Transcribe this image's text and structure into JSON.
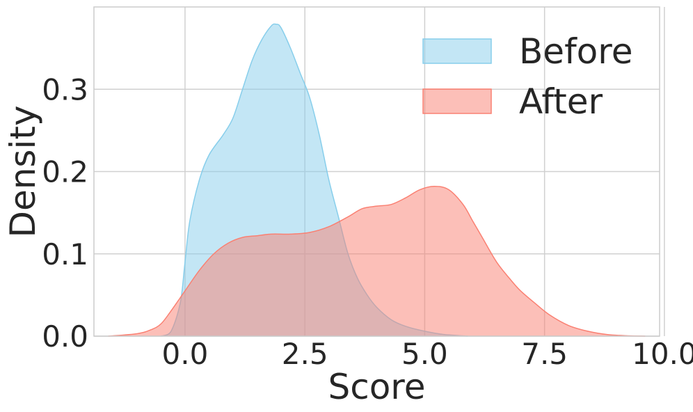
{
  "chart_data": {
    "type": "area",
    "title": "",
    "xlabel": "Score",
    "ylabel": "Density",
    "xlim": [
      -1.9,
      9.9
    ],
    "ylim": [
      0,
      0.4
    ],
    "x_ticks": [
      "0.0",
      "2.5",
      "5.0",
      "7.5",
      "10.0"
    ],
    "x_tick_values": [
      0,
      2.5,
      5,
      7.5,
      10
    ],
    "y_ticks": [
      "0.0",
      "0.1",
      "0.2",
      "0.3"
    ],
    "y_tick_values": [
      0,
      0.1,
      0.2,
      0.3
    ],
    "grid": true,
    "legend_position": "top-right",
    "series": [
      {
        "name": "Before",
        "color": "#87ceeb",
        "x": [
          -0.5,
          -0.3,
          -0.1,
          0.0,
          0.1,
          0.3,
          0.5,
          0.8,
          1.0,
          1.2,
          1.4,
          1.6,
          1.8,
          1.9,
          2.0,
          2.2,
          2.4,
          2.6,
          2.8,
          3.0,
          3.2,
          3.4,
          3.6,
          3.8,
          4.0,
          4.3,
          4.6,
          5.0,
          5.4,
          5.9
        ],
        "y": [
          0.0,
          0.005,
          0.04,
          0.09,
          0.14,
          0.19,
          0.22,
          0.245,
          0.265,
          0.3,
          0.335,
          0.36,
          0.377,
          0.379,
          0.375,
          0.35,
          0.32,
          0.29,
          0.245,
          0.19,
          0.145,
          0.1,
          0.07,
          0.05,
          0.035,
          0.02,
          0.012,
          0.006,
          0.002,
          0.0
        ]
      },
      {
        "name": "After",
        "color": "#fa8072",
        "x": [
          -1.6,
          -1.0,
          -0.7,
          -0.5,
          -0.3,
          0.0,
          0.3,
          0.6,
          0.9,
          1.2,
          1.5,
          1.8,
          2.2,
          2.6,
          3.0,
          3.4,
          3.7,
          4.0,
          4.3,
          4.6,
          4.9,
          5.2,
          5.5,
          5.8,
          6.0,
          6.2,
          6.5,
          6.8,
          7.0,
          7.3,
          7.6,
          8.0,
          8.4,
          8.8,
          9.2,
          9.6
        ],
        "y": [
          0.0,
          0.003,
          0.008,
          0.015,
          0.03,
          0.055,
          0.08,
          0.1,
          0.113,
          0.12,
          0.122,
          0.124,
          0.124,
          0.126,
          0.133,
          0.145,
          0.155,
          0.158,
          0.16,
          0.168,
          0.178,
          0.182,
          0.178,
          0.16,
          0.14,
          0.12,
          0.09,
          0.068,
          0.055,
          0.04,
          0.026,
          0.013,
          0.006,
          0.002,
          0.0005,
          0.0
        ]
      }
    ]
  }
}
